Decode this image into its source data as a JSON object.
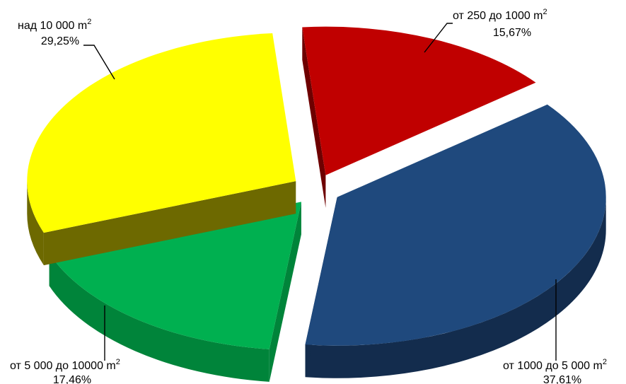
{
  "chart_data": {
    "type": "pie",
    "style": "3d-exploded",
    "unit_superscript": "2",
    "slices": [
      {
        "name": "от 250 до 1000 m",
        "percent_label": "15,67%",
        "value": 15.67,
        "color": "#c00000",
        "side_color": "#6e0000"
      },
      {
        "name": "от 1000 до 5 000 m",
        "percent_label": "37,61%",
        "value": 37.61,
        "color": "#1f497d",
        "side_color": "#132c4d"
      },
      {
        "name": "от 5 000 до 10000 m",
        "percent_label": "17,46%",
        "value": 17.46,
        "color": "#00b050",
        "side_color": "#00843a"
      },
      {
        "name": "над 10 000 m",
        "percent_label": "29,25%",
        "value": 29.25,
        "color": "#ffff00",
        "side_color": "#6d6900"
      }
    ]
  }
}
